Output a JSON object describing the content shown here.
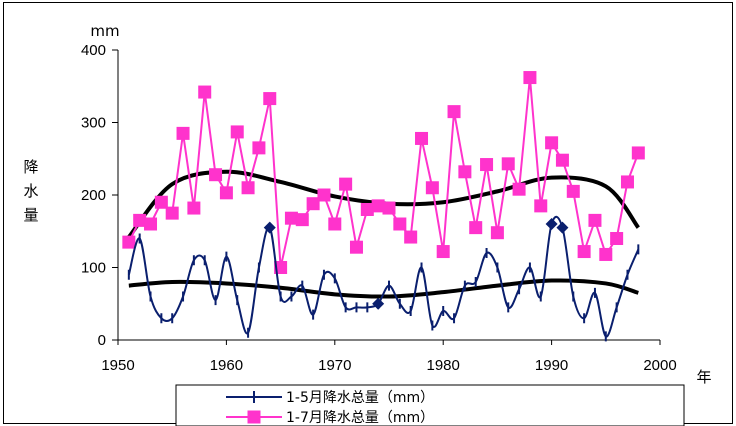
{
  "chart_data": {
    "type": "line",
    "xlabel": "年",
    "ylabel": "降水量",
    "yunit": "mm",
    "xlim": [
      1950,
      2000
    ],
    "ylim": [
      0,
      400
    ],
    "xticks": [
      1950,
      1960,
      1970,
      1980,
      1990,
      2000
    ],
    "yticks": [
      0,
      100,
      200,
      300,
      400
    ],
    "grid": false,
    "legend": "bottom-center",
    "series": [
      {
        "name": "1-5月降水总量（mm）",
        "color": "#0a1f6e",
        "marker": "plus",
        "x": [
          1951,
          1952,
          1953,
          1954,
          1955,
          1956,
          1957,
          1958,
          1959,
          1960,
          1961,
          1962,
          1963,
          1964,
          1965,
          1966,
          1967,
          1968,
          1969,
          1970,
          1971,
          1972,
          1973,
          1974,
          1975,
          1976,
          1977,
          1978,
          1979,
          1980,
          1981,
          1982,
          1983,
          1984,
          1985,
          1986,
          1987,
          1988,
          1989,
          1990,
          1991,
          1992,
          1993,
          1994,
          1995,
          1996,
          1997,
          1998
        ],
        "values": [
          90,
          140,
          60,
          30,
          30,
          60,
          110,
          110,
          55,
          115,
          55,
          10,
          100,
          155,
          60,
          60,
          75,
          35,
          90,
          85,
          45,
          45,
          45,
          50,
          75,
          50,
          40,
          100,
          20,
          40,
          30,
          75,
          80,
          120,
          100,
          45,
          70,
          100,
          60,
          160,
          155,
          60,
          30,
          65,
          5,
          45,
          90,
          125
        ]
      },
      {
        "name": "1-7月降水总量（mm）",
        "color": "#ff33cc",
        "marker": "square",
        "x": [
          1951,
          1952,
          1953,
          1954,
          1955,
          1956,
          1957,
          1958,
          1959,
          1960,
          1961,
          1962,
          1963,
          1964,
          1965,
          1966,
          1967,
          1968,
          1969,
          1970,
          1971,
          1972,
          1973,
          1974,
          1975,
          1976,
          1977,
          1978,
          1979,
          1980,
          1981,
          1982,
          1983,
          1984,
          1985,
          1986,
          1987,
          1988,
          1989,
          1990,
          1991,
          1992,
          1993,
          1994,
          1995,
          1996,
          1997,
          1998
        ],
        "values": [
          135,
          165,
          160,
          190,
          175,
          285,
          182,
          342,
          228,
          203,
          287,
          210,
          265,
          333,
          100,
          168,
          166,
          188,
          200,
          160,
          215,
          128,
          180,
          185,
          182,
          160,
          142,
          278,
          210,
          122,
          315,
          232,
          155,
          242,
          148,
          243,
          208,
          362,
          185,
          272,
          248,
          205,
          122,
          165,
          118,
          140,
          218,
          258
        ]
      }
    ],
    "trend_color": "#000000",
    "trends": [
      {
        "series": "1-5月降水总量（mm）",
        "x": [
          1951,
          1955,
          1960,
          1965,
          1970,
          1975,
          1980,
          1985,
          1990,
          1995,
          1998
        ],
        "values": [
          75,
          80,
          78,
          72,
          63,
          60,
          66,
          75,
          82,
          78,
          65
        ]
      },
      {
        "series": "1-7月降水总量（mm）",
        "x": [
          1951,
          1955,
          1960,
          1965,
          1970,
          1975,
          1980,
          1985,
          1990,
          1995,
          1998
        ],
        "values": [
          142,
          215,
          232,
          218,
          198,
          188,
          190,
          205,
          224,
          212,
          155
        ]
      }
    ]
  }
}
